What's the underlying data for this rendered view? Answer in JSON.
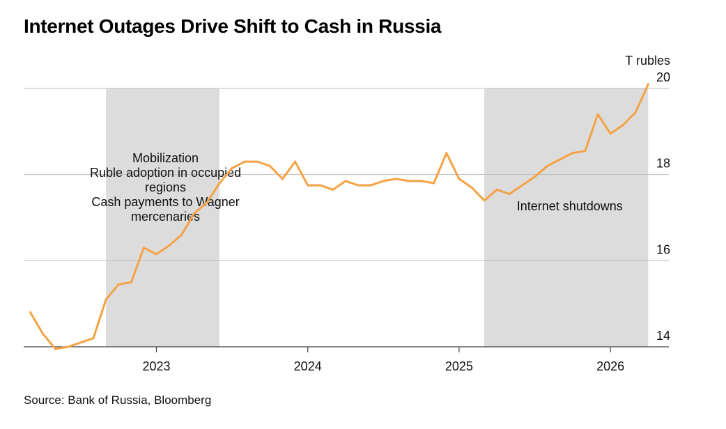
{
  "title": "Internet Outages Drive Shift to Cash in Russia",
  "source": "Source: Bank of Russia, Bloomberg",
  "chart_data": {
    "type": "line",
    "title": "Internet Outages Drive Shift to Cash in Russia",
    "unit_label": "T rubles",
    "ylim": [
      14,
      20
    ],
    "xlim": [
      "2022-03-01",
      "2026-05-01"
    ],
    "y_ticks": [
      "14",
      "16",
      "18",
      "20"
    ],
    "x_ticks": [
      "2023",
      "2024",
      "2025",
      "2026"
    ],
    "grid": "horizontal",
    "line_color": "#f5a244",
    "shade_color": "#dcdcdc",
    "series": [
      {
        "x": [
          "2022-03",
          "2022-04",
          "2022-05",
          "2022-06",
          "2022-07",
          "2022-08",
          "2022-09",
          "2022-10",
          "2022-11",
          "2022-12",
          "2023-01",
          "2023-02",
          "2023-03",
          "2023-04",
          "2023-05",
          "2023-06",
          "2023-07",
          "2023-08",
          "2023-09",
          "2023-10",
          "2023-11",
          "2023-12",
          "2024-01",
          "2024-02",
          "2024-03",
          "2024-04",
          "2024-05",
          "2024-06",
          "2024-07",
          "2024-08",
          "2024-09",
          "2024-10",
          "2024-11",
          "2024-12",
          "2025-01",
          "2025-02",
          "2025-03",
          "2025-04",
          "2025-05",
          "2025-06",
          "2025-07",
          "2025-08",
          "2025-09",
          "2025-10",
          "2025-11",
          "2025-12",
          "2026-01",
          "2026-02",
          "2026-03",
          "2026-04"
        ],
        "values": [
          14.8,
          14.3,
          13.95,
          14.0,
          14.1,
          14.2,
          15.1,
          15.45,
          15.5,
          16.3,
          16.15,
          16.35,
          16.6,
          17.1,
          17.35,
          17.8,
          18.15,
          18.3,
          18.3,
          18.2,
          17.9,
          18.3,
          17.75,
          17.75,
          17.65,
          17.85,
          17.75,
          17.75,
          17.85,
          17.9,
          17.85,
          17.85,
          17.8,
          18.5,
          17.9,
          17.7,
          17.4,
          17.65,
          17.55,
          17.75,
          17.95,
          18.2,
          18.35,
          18.5,
          18.55,
          19.4,
          18.95,
          19.15,
          19.45,
          20.1
        ]
      }
    ],
    "shaded_periods": [
      {
        "start": "2022-09",
        "end": "2023-06",
        "labels": [
          "Mobilization",
          "Ruble adoption in occupied",
          "regions",
          "Cash payments to Wagner",
          "mercenaries"
        ]
      },
      {
        "start": "2025-03",
        "end": "2026-04",
        "labels": [
          "Internet shutdowns"
        ]
      }
    ]
  }
}
